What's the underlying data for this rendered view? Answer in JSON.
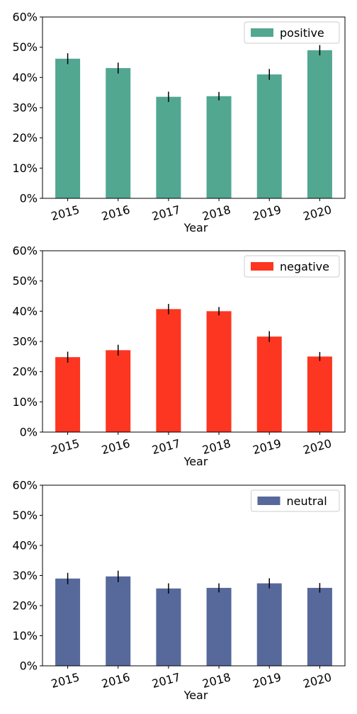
{
  "chart_data": [
    {
      "type": "bar",
      "categories": [
        "2015",
        "2016",
        "2017",
        "2018",
        "2019",
        "2020"
      ],
      "series": [
        {
          "name": "positive",
          "values": [
            46.2,
            43.1,
            33.6,
            33.8,
            41.0,
            49.0
          ],
          "errors": [
            1.8,
            1.8,
            1.7,
            1.4,
            1.8,
            1.7
          ]
        }
      ],
      "color": "#52a791",
      "xlabel": "Year",
      "ylim": [
        0,
        60
      ],
      "yticks": [
        "0%",
        "10%",
        "20%",
        "30%",
        "40%",
        "50%",
        "60%"
      ],
      "legend": "top-right",
      "grid": false
    },
    {
      "type": "bar",
      "categories": [
        "2015",
        "2016",
        "2017",
        "2018",
        "2019",
        "2020"
      ],
      "series": [
        {
          "name": "negative",
          "values": [
            24.8,
            27.1,
            40.7,
            40.0,
            31.6,
            25.0
          ],
          "errors": [
            1.8,
            1.8,
            1.7,
            1.4,
            1.8,
            1.5
          ]
        }
      ],
      "color": "#fd3621",
      "xlabel": "Year",
      "ylim": [
        0,
        60
      ],
      "yticks": [
        "0%",
        "10%",
        "20%",
        "30%",
        "40%",
        "50%",
        "60%"
      ],
      "legend": "top-right",
      "grid": false
    },
    {
      "type": "bar",
      "categories": [
        "2015",
        "2016",
        "2017",
        "2018",
        "2019",
        "2020"
      ],
      "series": [
        {
          "name": "neutral",
          "values": [
            29.0,
            29.7,
            25.7,
            25.9,
            27.4,
            25.9
          ],
          "errors": [
            1.9,
            1.9,
            1.7,
            1.5,
            1.7,
            1.6
          ]
        }
      ],
      "color": "#57699b",
      "xlabel": "Year",
      "ylim": [
        0,
        60
      ],
      "yticks": [
        "0%",
        "10%",
        "20%",
        "30%",
        "40%",
        "50%",
        "60%"
      ],
      "legend": "top-right",
      "grid": false
    }
  ]
}
